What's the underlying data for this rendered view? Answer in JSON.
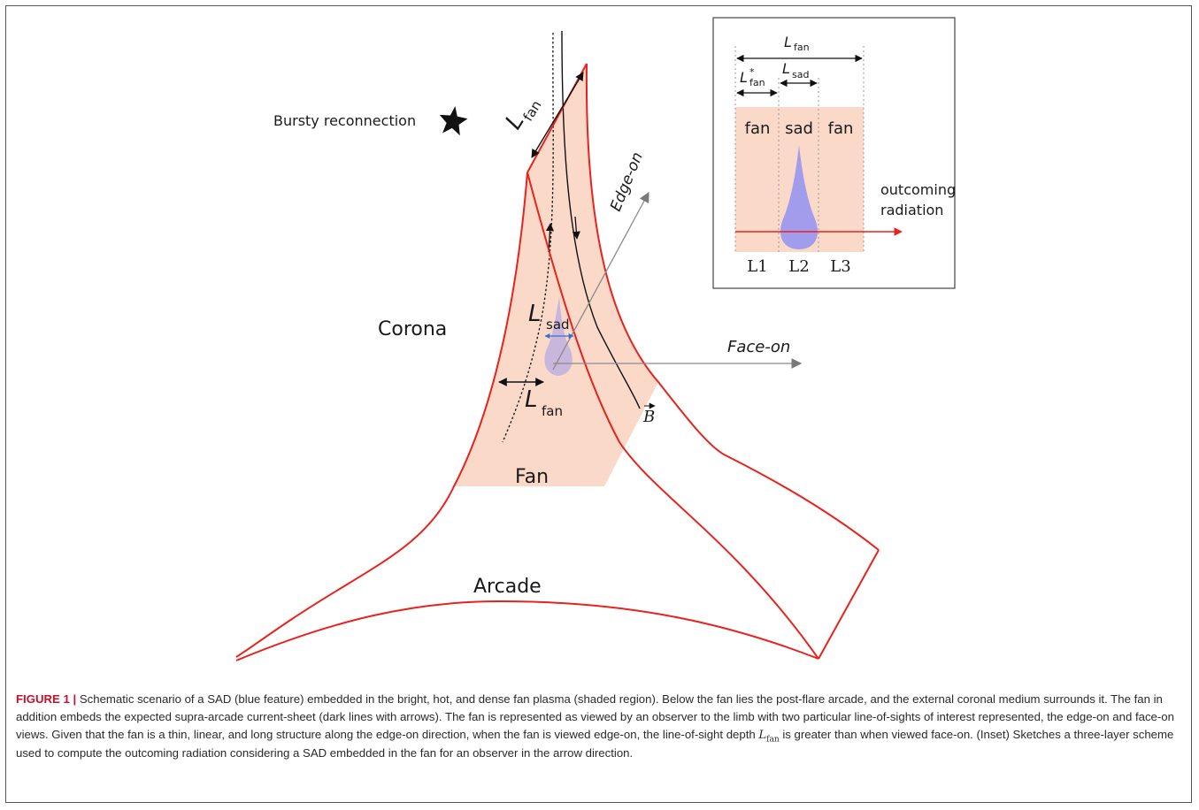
{
  "diagram": {
    "labels": {
      "bursty_reconnection": "Bursty reconnection",
      "corona": "Corona",
      "fan": "Fan",
      "arcade": "Arcade",
      "edge_on": "Edge-on",
      "face_on": "Face-on",
      "b_field": "B",
      "l_fan_top": {
        "main": "L",
        "sub": "fan"
      },
      "l_sad": {
        "main": "L",
        "sub": "sad"
      },
      "l_fan_mid": {
        "main": "L",
        "sub": "fan"
      }
    },
    "inset": {
      "l_fan": {
        "main": "L",
        "sub": "fan"
      },
      "l_fan_star": {
        "main": "L",
        "sup": "*",
        "sub": "fan"
      },
      "l_sad": {
        "main": "L",
        "sub": "sad"
      },
      "columns": [
        "fan",
        "sad",
        "fan"
      ],
      "layers": [
        "L1",
        "L2",
        "L3"
      ],
      "radiation_label": [
        "outcoming",
        "radiation"
      ]
    },
    "colors": {
      "fan_fill": "#fbd9c8",
      "boundary": "#e8221c",
      "sad_blue": "#8c8cf5",
      "arrow_gray": "#7a7a7a"
    }
  },
  "caption": {
    "label": "FIGURE 1",
    "separator": " | ",
    "part1": "Schematic scenario of a SAD (blue feature) embedded in the bright, hot, and dense fan plasma (shaded region). Below the fan lies the post-flare arcade, and the external coronal medium surrounds it. The fan in addition embeds the expected supra-arcade current-sheet (dark lines with arrows). The fan is represented as viewed by an observer to the limb with two particular line-of-sights of interest represented, the edge-on and face-on views. Given that the fan is a thin, linear, and long structure along the edge-on direction, when the fan is viewed edge-on, the line-of-sight depth ",
    "sym_main": "L",
    "sym_sub": "fan",
    "part2": " is greater than when viewed face-on. (Inset) Sketches a three-layer scheme used to compute the outcoming radiation considering a SAD embedded in the fan for an observer in the arrow direction."
  }
}
